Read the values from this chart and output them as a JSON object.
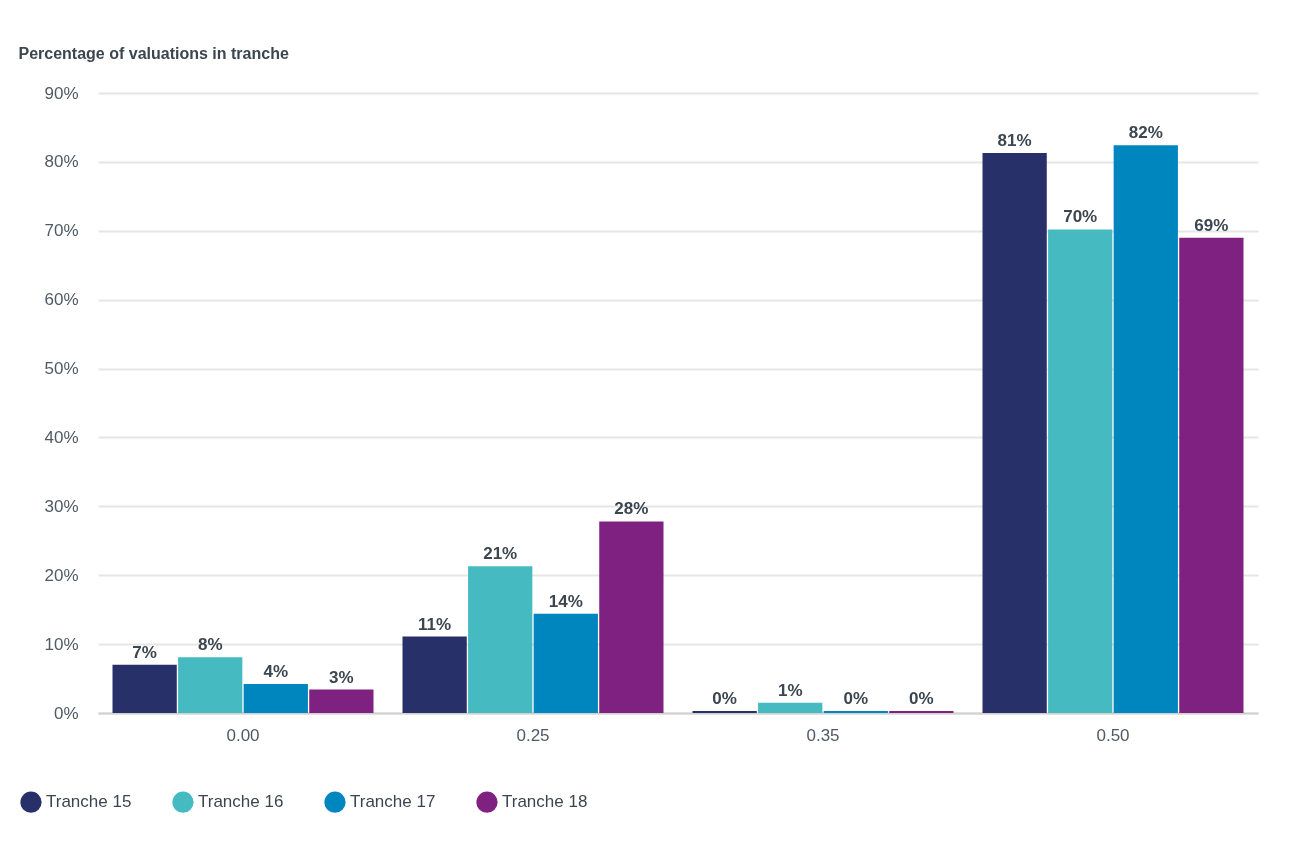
{
  "chart_data": {
    "type": "bar",
    "ylabel": "Percentage of valuations in tranche",
    "categories": [
      "0.00",
      "0.25",
      "0.35",
      "0.50"
    ],
    "series": [
      {
        "name": "Tranche 15",
        "color": "#283069",
        "values": [
          7.0,
          11.1,
          0.3,
          81.3
        ],
        "value_labels": [
          "7%",
          "11%",
          "0%",
          "81%"
        ]
      },
      {
        "name": "Tranche 16",
        "color": "#45bbc1",
        "values": [
          8.1,
          21.3,
          1.5,
          70.2
        ],
        "value_labels": [
          "8%",
          "21%",
          "1%",
          "70%"
        ]
      },
      {
        "name": "Tranche 17",
        "color": "#0086bf",
        "values": [
          4.2,
          14.4,
          0.3,
          82.4
        ],
        "value_labels": [
          "4%",
          "14%",
          "0%",
          "82%"
        ]
      },
      {
        "name": "Tranche 18",
        "color": "#7f2180",
        "values": [
          3.4,
          27.8,
          0.3,
          69.0
        ],
        "value_labels": [
          "3%",
          "28%",
          "0%",
          "69%"
        ]
      }
    ],
    "ylim": [
      0,
      90
    ],
    "yticks": [
      {
        "value": 0,
        "label": "0%"
      },
      {
        "value": 10,
        "label": "10%"
      },
      {
        "value": 20,
        "label": "20%"
      },
      {
        "value": 30,
        "label": "30%"
      },
      {
        "value": 40,
        "label": "40%"
      },
      {
        "value": 50,
        "label": "50%"
      },
      {
        "value": 60,
        "label": "60%"
      },
      {
        "value": 70,
        "label": "70%"
      },
      {
        "value": 80,
        "label": "80%"
      },
      {
        "value": 90,
        "label": "90%"
      }
    ],
    "grid": "y",
    "legend": "bottom left"
  }
}
